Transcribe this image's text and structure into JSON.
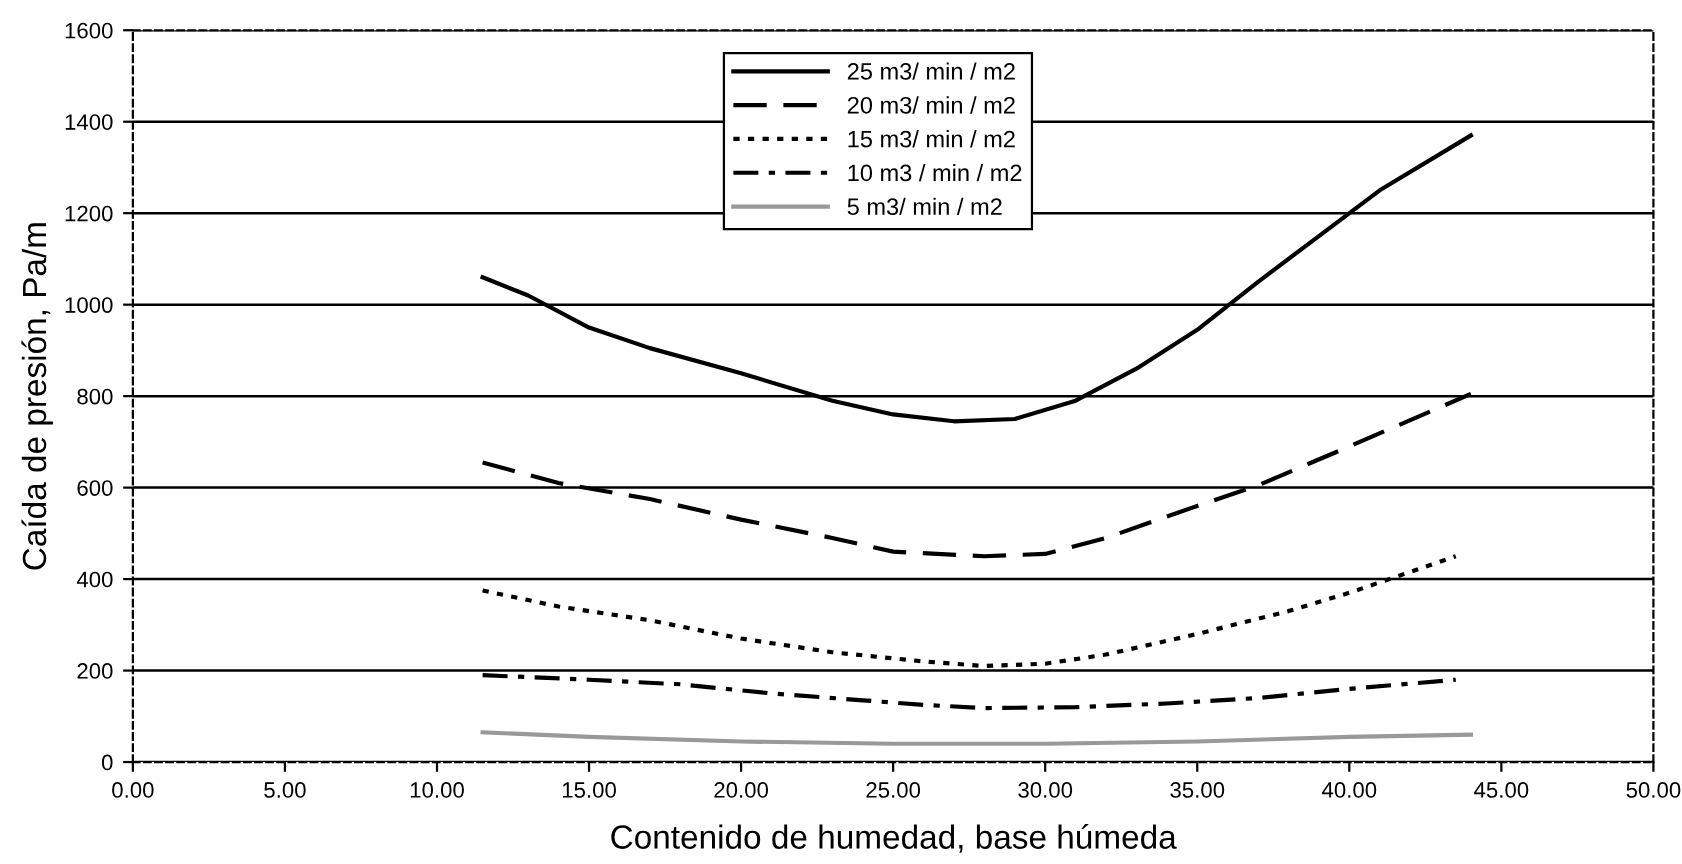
{
  "chart_data": {
    "type": "line",
    "xlabel": "Contenido de humedad, base húmeda",
    "ylabel": "Caída de presión, Pa/m",
    "xlim": [
      0,
      50
    ],
    "ylim": [
      0,
      1600
    ],
    "xticks": [
      {
        "value": 0,
        "label": "0.00"
      },
      {
        "value": 5,
        "label": "5.00"
      },
      {
        "value": 10,
        "label": "10.00"
      },
      {
        "value": 15,
        "label": "15.00"
      },
      {
        "value": 20,
        "label": "20.00"
      },
      {
        "value": 25,
        "label": "25.00"
      },
      {
        "value": 30,
        "label": "30.00"
      },
      {
        "value": 35,
        "label": "35.00"
      },
      {
        "value": 40,
        "label": "40.00"
      },
      {
        "value": 45,
        "label": "45.00"
      },
      {
        "value": 50,
        "label": "50.00"
      }
    ],
    "yticks": [
      0,
      200,
      400,
      600,
      800,
      1000,
      1200,
      1400,
      1600
    ],
    "grid": "y",
    "legend": "top",
    "marker": "none",
    "series": [
      {
        "name": "25 m3/ min / m2",
        "color": "#000000",
        "line_style": "solid",
        "x": [
          11.5,
          13,
          15,
          17,
          20,
          23,
          25,
          27,
          29,
          31,
          33,
          35,
          37,
          39,
          41,
          44
        ],
        "values": [
          1060,
          1020,
          950,
          905,
          850,
          790,
          760,
          745,
          750,
          790,
          860,
          945,
          1050,
          1150,
          1250,
          1370
        ]
      },
      {
        "name": "20 m3/ min / m2",
        "color": "#000000",
        "line_style": "dashed",
        "x": [
          11.5,
          14,
          17,
          20,
          23,
          25,
          28,
          30,
          32,
          35,
          37,
          40,
          44
        ],
        "values": [
          655,
          610,
          575,
          530,
          490,
          460,
          450,
          455,
          490,
          560,
          605,
          690,
          805
        ]
      },
      {
        "name": "15 m3/ min / m2",
        "color": "#000000",
        "line_style": "dotted",
        "x": [
          11.5,
          14,
          17,
          20,
          23,
          26,
          28,
          30,
          32,
          35,
          38,
          40,
          43.5
        ],
        "values": [
          375,
          340,
          310,
          270,
          240,
          220,
          210,
          215,
          235,
          280,
          330,
          370,
          450
        ]
      },
      {
        "name": "10 m3 / min / m2",
        "color": "#000000",
        "line_style": "dashdot",
        "x": [
          11.5,
          15,
          18,
          21,
          24,
          26,
          28,
          31,
          34,
          37,
          40,
          43.5
        ],
        "values": [
          190,
          180,
          170,
          150,
          135,
          125,
          118,
          120,
          128,
          140,
          160,
          180
        ]
      },
      {
        "name": "5 m3/ min / m2",
        "color": "#999999",
        "line_style": "solid",
        "x": [
          11.5,
          15,
          20,
          25,
          30,
          35,
          40,
          44
        ],
        "values": [
          65,
          55,
          45,
          40,
          40,
          45,
          55,
          60
        ]
      }
    ]
  }
}
